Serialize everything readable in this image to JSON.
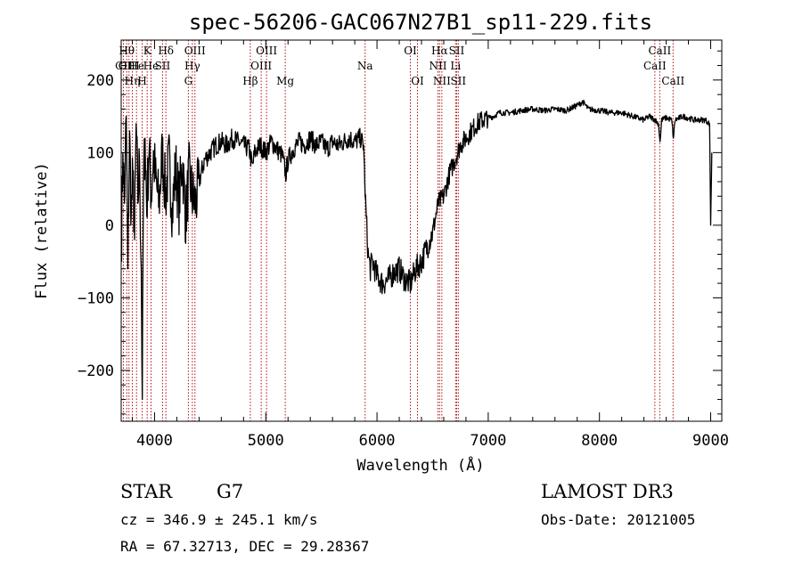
{
  "chart_data": {
    "type": "line",
    "title": "spec-56206-GAC067N27B1_sp11-229.fits",
    "xlabel": "Wavelength (Å)",
    "ylabel": "Flux (relative)",
    "xlim": [
      3700,
      9100
    ],
    "ylim": [
      -270,
      255
    ],
    "xticks": [
      4000,
      5000,
      6000,
      7000,
      8000,
      9000
    ],
    "yticks": [
      -200,
      -100,
      0,
      100,
      200
    ],
    "grid": false,
    "series": [
      {
        "color": "#000000",
        "x": [
          3700,
          3715,
          3730,
          3745,
          3760,
          3775,
          3790,
          3805,
          3820,
          3835,
          3850,
          3865,
          3880,
          3890,
          3900,
          3915,
          3930,
          3950,
          3970,
          3990,
          4010,
          4040,
          4070,
          4100,
          4130,
          4160,
          4190,
          4220,
          4250,
          4280,
          4310,
          4340,
          4370,
          4400,
          4450,
          4500,
          4550,
          4600,
          4650,
          4700,
          4750,
          4800,
          4850,
          4880,
          4900,
          4950,
          5000,
          5050,
          5100,
          5150,
          5180,
          5200,
          5250,
          5300,
          5350,
          5400,
          5450,
          5500,
          5550,
          5600,
          5650,
          5700,
          5750,
          5800,
          5850,
          5880,
          5890,
          5900,
          5920,
          5940,
          5960,
          6000,
          6050,
          6100,
          6150,
          6200,
          6250,
          6300,
          6350,
          6400,
          6450,
          6500,
          6550,
          6600,
          6650,
          6700,
          6750,
          6800,
          6850,
          6900,
          6950,
          7000,
          7050,
          7100,
          7200,
          7300,
          7400,
          7500,
          7600,
          7700,
          7800,
          7850,
          7900,
          8000,
          8100,
          8200,
          8300,
          8400,
          8450,
          8500,
          8530,
          8545,
          8560,
          8600,
          8650,
          8665,
          8680,
          8750,
          8850,
          8950,
          8990,
          9000,
          9010
        ],
        "y": [
          -40,
          100,
          30,
          150,
          -60,
          130,
          10,
          70,
          -20,
          140,
          30,
          90,
          -60,
          -240,
          50,
          120,
          20,
          110,
          40,
          100,
          60,
          30,
          100,
          40,
          90,
          20,
          80,
          30,
          90,
          10,
          70,
          40,
          30,
          60,
          90,
          100,
          110,
          115,
          110,
          120,
          115,
          110,
          105,
          80,
          100,
          110,
          100,
          115,
          105,
          95,
          70,
          90,
          105,
          115,
          110,
          120,
          110,
          115,
          105,
          115,
          110,
          115,
          120,
          115,
          120,
          110,
          60,
          20,
          -40,
          -60,
          -50,
          -70,
          -80,
          -75,
          -65,
          -60,
          -75,
          -80,
          -60,
          -50,
          -30,
          -10,
          30,
          40,
          70,
          90,
          110,
          120,
          130,
          140,
          145,
          148,
          150,
          155,
          155,
          158,
          160,
          158,
          160,
          158,
          165,
          170,
          160,
          158,
          155,
          155,
          150,
          145,
          150,
          145,
          140,
          115,
          145,
          148,
          145,
          120,
          145,
          150,
          145,
          145,
          140,
          0,
          100
        ]
      }
    ],
    "lines_labels": [
      {
        "w": 3720,
        "label": "CII",
        "tier": 3
      },
      {
        "w": 3750,
        "label": "Hθ",
        "tier": 1
      },
      {
        "w": 3770,
        "label": "OIII",
        "tier": 3
      },
      {
        "w": 3800,
        "label": "Hη",
        "tier": 4
      },
      {
        "w": 3838,
        "label": "He",
        "tier": 2
      },
      {
        "w": 3889,
        "label": "H",
        "tier": 4
      },
      {
        "w": 3934,
        "label": "K",
        "tier": 1
      },
      {
        "w": 3968,
        "label": "He",
        "tier": 2
      },
      {
        "w": 4072,
        "label": "SII",
        "tier": 2
      },
      {
        "w": 4102,
        "label": "Hδ",
        "tier": 1
      },
      {
        "w": 4304,
        "label": "G",
        "tier": 4
      },
      {
        "w": 4340,
        "label": "Hγ",
        "tier": 3
      },
      {
        "w": 4363,
        "label": "OIII",
        "tier": 1
      },
      {
        "w": 4861,
        "label": "Hβ",
        "tier": 4
      },
      {
        "w": 4959,
        "label": "OIII",
        "tier": 3
      },
      {
        "w": 5007,
        "label": "OIII",
        "tier": 1
      },
      {
        "w": 5175,
        "label": "Mg",
        "tier": 4
      },
      {
        "w": 5893,
        "label": "Na",
        "tier": 3
      },
      {
        "w": 6300,
        "label": "OI",
        "tier": 1
      },
      {
        "w": 6364,
        "label": "OI",
        "tier": 4
      },
      {
        "w": 6548,
        "label": "NII",
        "tier": 3
      },
      {
        "w": 6563,
        "label": "Hα",
        "tier": 1
      },
      {
        "w": 6583,
        "label": "NII",
        "tier": 4
      },
      {
        "w": 6707,
        "label": "Li",
        "tier": 3
      },
      {
        "w": 6716,
        "label": "SII",
        "tier": 1
      },
      {
        "w": 6731,
        "label": "SII",
        "tier": 4
      },
      {
        "w": 8498,
        "label": "CaII",
        "tier": 3
      },
      {
        "w": 8542,
        "label": "CaII",
        "tier": 1
      },
      {
        "w": 8662,
        "label": "CaII",
        "tier": 4
      }
    ]
  },
  "footer": {
    "class_label": "STAR",
    "subclass_label": "G7",
    "survey_label": "LAMOST DR3",
    "cz_text": "cz = 346.9 ± 245.1 km/s",
    "obs_date_text": "Obs-Date: 20121005",
    "coords_text": "RA =  67.32713, DEC =  29.28367"
  }
}
